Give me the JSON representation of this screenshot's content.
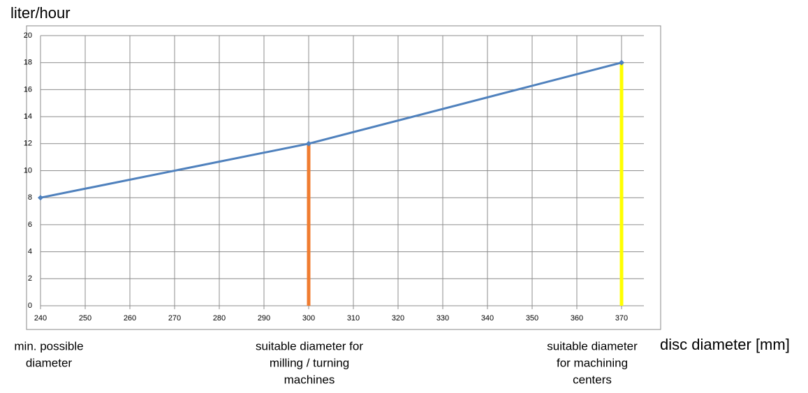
{
  "chart_data": {
    "type": "line",
    "y_label": "liter/hour",
    "x_label": "disc diameter [mm]",
    "x": [
      240,
      300,
      370
    ],
    "series": [
      {
        "color": "#4f81bd",
        "values": [
          8,
          12,
          18
        ]
      }
    ],
    "markers": [
      {
        "x": 300,
        "value": 12,
        "color": "#f07c30"
      },
      {
        "x": 370,
        "value": 18,
        "color": "#ffff00"
      }
    ],
    "annotations": [
      {
        "x": 240,
        "lines": [
          "min. possible",
          "diameter"
        ]
      },
      {
        "x": 300,
        "lines": [
          "suitable diameter for",
          "milling / turning",
          "machines"
        ]
      },
      {
        "x": 370,
        "lines": [
          "suitable diameter",
          "for machining",
          "centers"
        ]
      }
    ],
    "xlim": [
      240,
      370
    ],
    "xticks": [
      240,
      250,
      260,
      270,
      280,
      290,
      300,
      310,
      320,
      330,
      340,
      350,
      360,
      370
    ],
    "ylim": [
      0,
      20
    ],
    "yticks": [
      0,
      2,
      4,
      6,
      8,
      10,
      12,
      14,
      16,
      18,
      20
    ],
    "grid": true
  }
}
